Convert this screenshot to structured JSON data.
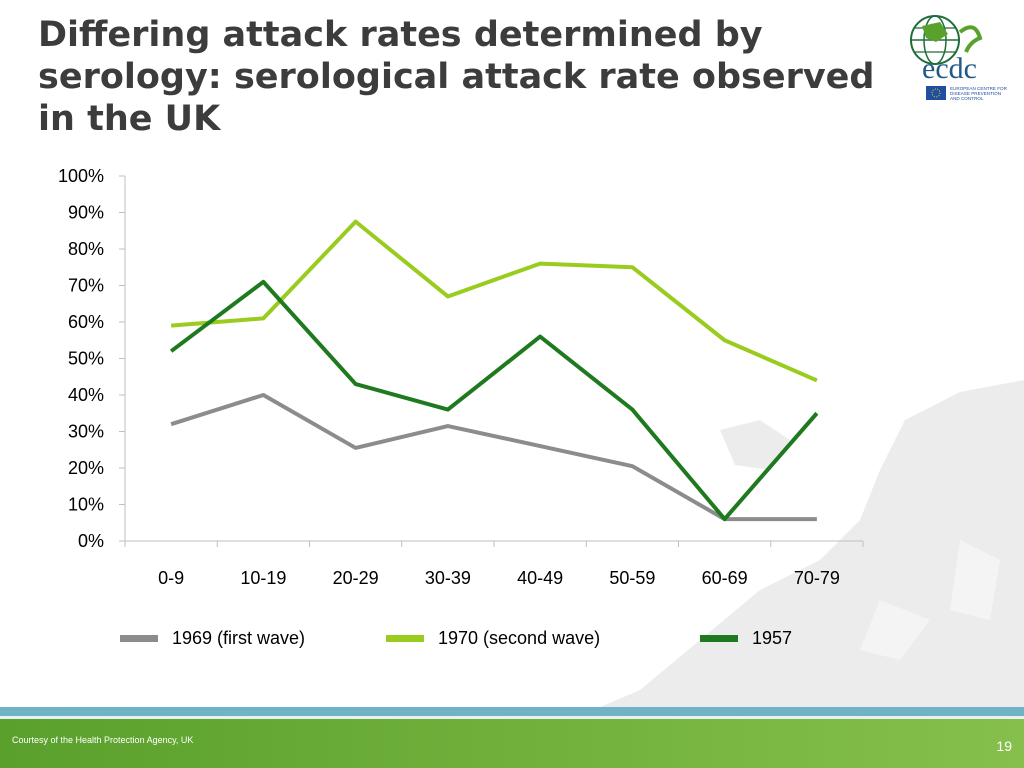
{
  "slide": {
    "title": "Differing attack rates determined by serology: serological attack rate observed in the UK",
    "credit": "Courtesy of the Health Protection Agency, UK",
    "page_number": "19"
  },
  "logo": {
    "text": "ecdc",
    "subtitle_lines": [
      "EUROPEAN CENTRE FOR",
      "DISEASE PREVENTION",
      "AND CONTROL"
    ]
  },
  "chart_data": {
    "type": "line",
    "categories": [
      "0-9",
      "10-19",
      "20-29",
      "30-39",
      "40-49",
      "50-59",
      "60-69",
      "70-79"
    ],
    "ylim": [
      0,
      100
    ],
    "yticks": [
      "0%",
      "10%",
      "20%",
      "30%",
      "40%",
      "50%",
      "60%",
      "70%",
      "80%",
      "90%",
      "100%"
    ],
    "grid": false,
    "legend_position": "bottom",
    "series": [
      {
        "name": "1969 (first wave)",
        "color": "#8c8c8c",
        "values": [
          32,
          40,
          25.5,
          31.5,
          26,
          20.5,
          6,
          6
        ]
      },
      {
        "name": "1970 (second wave)",
        "color": "#99cc1f",
        "values": [
          59,
          61,
          87.5,
          67,
          76,
          75,
          55,
          44
        ]
      },
      {
        "name": "1957",
        "color": "#1f7a1f",
        "values": [
          52,
          71,
          43,
          36,
          56,
          36,
          6,
          35
        ]
      }
    ]
  }
}
